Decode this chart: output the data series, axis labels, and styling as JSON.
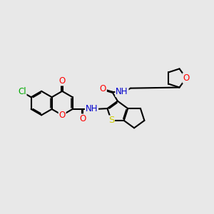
{
  "bg_color": "#e8e8e8",
  "bond_color": "#000000",
  "bond_width": 1.5,
  "atom_colors": {
    "O": "#ff0000",
    "N": "#0000cd",
    "S": "#cccc00",
    "Cl": "#00aa00",
    "H": "#888888",
    "C": "#000000"
  },
  "font_size": 8.5,
  "figsize": [
    3.0,
    3.0
  ],
  "dpi": 100,
  "xlim": [
    -4.2,
    6.8
  ],
  "ylim": [
    -3.2,
    3.2
  ]
}
